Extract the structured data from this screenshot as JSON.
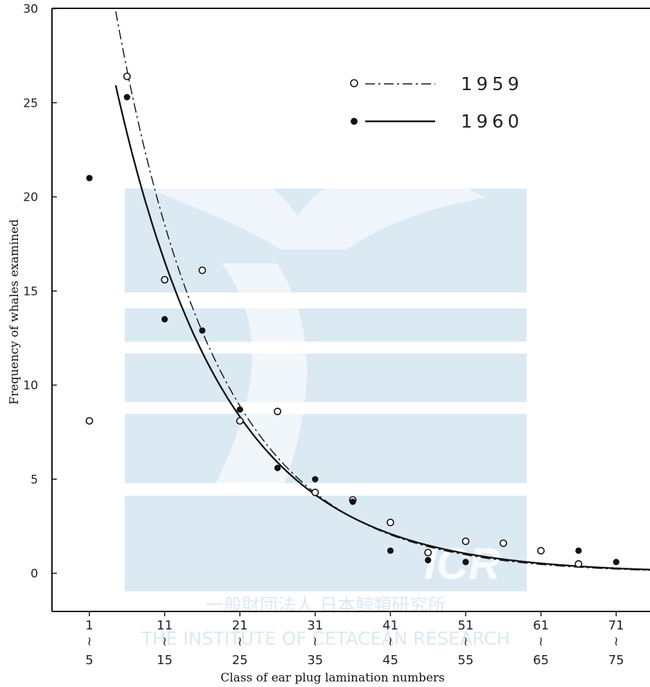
{
  "chart_data": {
    "type": "scatter",
    "title": "",
    "xlabel": "Class of ear plug lamination numbers",
    "ylabel": "Frequency of whales examined",
    "ylim": [
      0,
      30
    ],
    "yticks": [
      "0",
      "5",
      "10",
      "15",
      "20",
      "25",
      "30"
    ],
    "x_categories": [
      {
        "top": "1",
        "bottom": "5"
      },
      {
        "top": "11",
        "bottom": "15"
      },
      {
        "top": "21",
        "bottom": "25"
      },
      {
        "top": "31",
        "bottom": "35"
      },
      {
        "top": "41",
        "bottom": "45"
      },
      {
        "top": "51",
        "bottom": "55"
      },
      {
        "top": "61",
        "bottom": "65"
      },
      {
        "top": "71",
        "bottom": "75"
      }
    ],
    "class_tilde": "≀",
    "series": [
      {
        "name": "1959",
        "marker": "open-circle",
        "line": "dash-dot",
        "x": [
          1,
          6,
          11,
          16,
          21,
          26,
          31,
          36,
          41,
          46,
          51,
          56,
          61,
          66
        ],
        "y": [
          8.1,
          26.4,
          15.6,
          16.1,
          8.1,
          8.6,
          4.3,
          3.9,
          2.7,
          1.1,
          1.7,
          1.6,
          1.2,
          0.5
        ],
        "fit": {
          "a": 38.6,
          "b": 0.0734,
          "x_from": 4.5,
          "x_to": 75.5
        }
      },
      {
        "name": "1960",
        "marker": "filled-circle",
        "line": "solid",
        "x": [
          1,
          6,
          11,
          16,
          21,
          26,
          31,
          36,
          41,
          46,
          51,
          66,
          71
        ],
        "y": [
          21.0,
          25.3,
          13.5,
          12.9,
          8.7,
          5.6,
          5.0,
          3.8,
          1.2,
          0.7,
          0.6,
          1.2,
          0.6
        ],
        "fit": {
          "a": 33.0,
          "b": 0.0689,
          "x_from": 4.5,
          "x_to": 75.5
        }
      }
    ],
    "legend": {
      "position": "top-right"
    },
    "grid": false
  },
  "watermark": {
    "line1": "一般財団法人 日本鯨類研究所",
    "line2": "THE INSTITUTE OF CETACEAN RESEARCH",
    "logo_text": "ICR",
    "color": "#dbe9f3"
  },
  "colors": {
    "ink": "#111111",
    "watermark": "#dbe9f3"
  }
}
